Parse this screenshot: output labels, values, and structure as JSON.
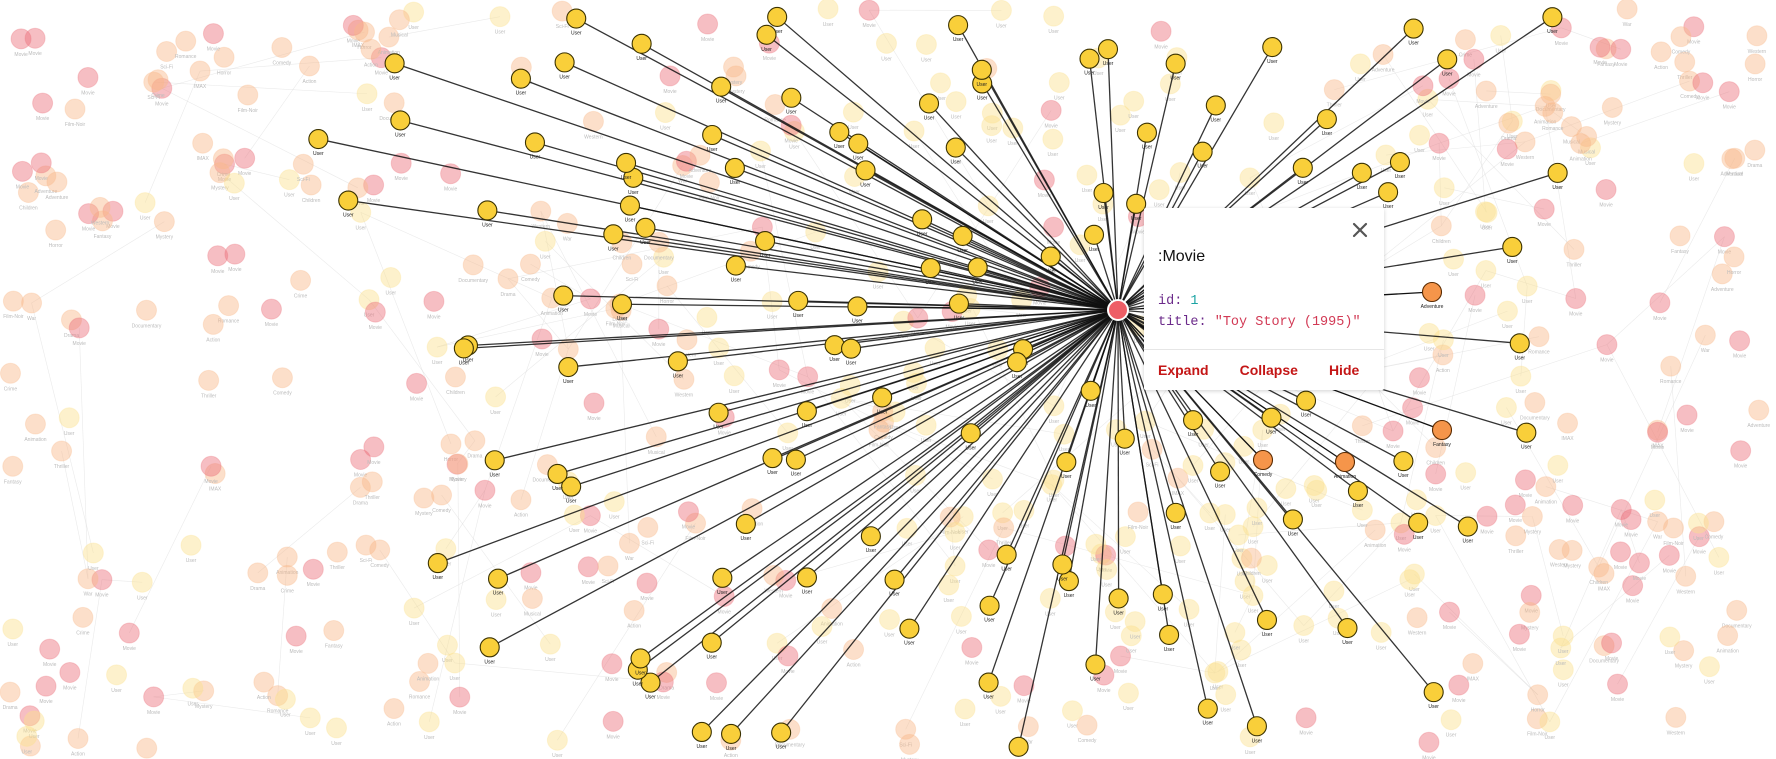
{
  "graph": {
    "center_node_label": ":Movie",
    "center_node_color": "#ee5e66",
    "user_node_color": "#f9cf3a",
    "user_node_stroke": "#3b3200",
    "user_node_label": "User",
    "highlighted_genre_color": "#f5954a",
    "highlighted_genre_labels": [
      "Adventure",
      "Fantasy",
      "Animation",
      "Comedy",
      "Children"
    ],
    "faded_movie_color": "#ec6f79",
    "faded_user_color": "#fbe08d",
    "faded_genre_color": "#f8b88a",
    "faded_genre_labels": [
      "Drama",
      "Comedy",
      "Romance",
      "Thriller",
      "Action",
      "Crime",
      "Horror",
      "Sci-Fi",
      "Mystery",
      "Documentary",
      "War",
      "Western",
      "Musical",
      "Film-Noir",
      "IMAX",
      "Children",
      "Fantasy",
      "Adventure",
      "Animation"
    ],
    "faded_movie_label": "Movie",
    "edge_color_active": "#111111",
    "edge_color_faded": "#d9d9d9"
  },
  "popup": {
    "title": ":Movie",
    "close_icon": "close-icon",
    "properties": [
      {
        "key": "id",
        "value": "1",
        "type": "number"
      },
      {
        "key": "title",
        "value": "\"Toy Story (1995)\"",
        "type": "string"
      }
    ],
    "actions": [
      {
        "name": "expand-button",
        "label": "Expand"
      },
      {
        "name": "collapse-button",
        "label": "Collapse"
      },
      {
        "name": "hide-button",
        "label": "Hide"
      }
    ]
  }
}
